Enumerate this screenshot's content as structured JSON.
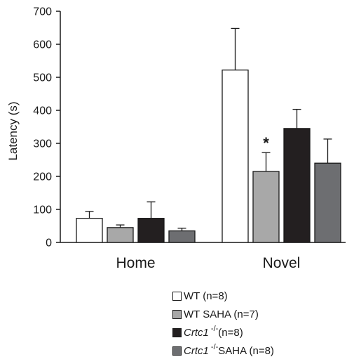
{
  "chart_data": {
    "type": "bar",
    "title": "",
    "xlabel": "",
    "ylabel": "Latency (s)",
    "ylim": [
      0,
      700
    ],
    "yticks": [
      0,
      100,
      200,
      300,
      400,
      500,
      600,
      700
    ],
    "categories": [
      "Home",
      "Novel"
    ],
    "series": [
      {
        "name": "WT (n=8)",
        "legend": {
          "italic": "",
          "sup": "",
          "text": "WT (n=8)"
        },
        "color": "#ffffff",
        "values": [
          73,
          522
        ],
        "errors": [
          21,
          126
        ],
        "annotations": [
          "",
          ""
        ]
      },
      {
        "name": "WT SAHA (n=7)",
        "legend": {
          "italic": "",
          "sup": "",
          "text": "WT SAHA (n=7)"
        },
        "color": "#a8a8a8",
        "values": [
          45,
          215
        ],
        "errors": [
          8,
          57
        ],
        "annotations": [
          "",
          "*"
        ]
      },
      {
        "name": "Crtc1 -/-(n=8)",
        "legend": {
          "italic": "Crtc1",
          "sup": " -/-",
          "text": "(n=8)"
        },
        "color": "#231f20",
        "values": [
          73,
          345
        ],
        "errors": [
          50,
          58
        ],
        "annotations": [
          "",
          ""
        ]
      },
      {
        "name": "Crtc1 -/-SAHA (n=8)",
        "legend": {
          "italic": "Crtc1",
          "sup": " -/-",
          "text": "SAHA (n=8)"
        },
        "color": "#6d6e71",
        "values": [
          35,
          240
        ],
        "errors": [
          8,
          73
        ],
        "annotations": [
          "",
          ""
        ]
      }
    ],
    "grid": false,
    "legend_position": "bottom-right"
  }
}
